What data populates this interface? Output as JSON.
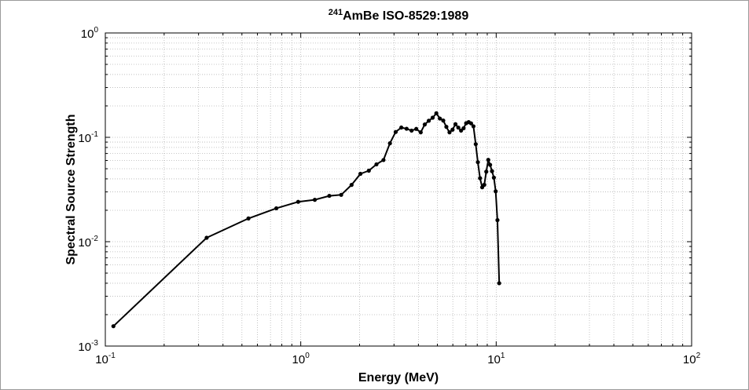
{
  "chart_data": {
    "type": "line",
    "title_superscript": "241",
    "title_main": "AmBe ISO-8529:1989",
    "xlabel": "Energy (MeV)",
    "ylabel": "Spectral Source Strength",
    "xscale": "log",
    "yscale": "log",
    "xlim": [
      0.1,
      100
    ],
    "ylim": [
      0.001,
      1
    ],
    "grid": true,
    "x_ticks": [
      {
        "base": "10",
        "exp": "-1",
        "value": 0.1
      },
      {
        "base": "10",
        "exp": "0",
        "value": 1
      },
      {
        "base": "10",
        "exp": "1",
        "value": 10
      },
      {
        "base": "10",
        "exp": "2",
        "value": 100
      }
    ],
    "y_ticks": [
      {
        "base": "10",
        "exp": "-3",
        "value": 0.001
      },
      {
        "base": "10",
        "exp": "-2",
        "value": 0.01
      },
      {
        "base": "10",
        "exp": "-1",
        "value": 0.1
      },
      {
        "base": "10",
        "exp": "0",
        "value": 1
      }
    ],
    "series": [
      {
        "color": "#000000",
        "marker": "dot",
        "x": [
          0.11,
          0.33,
          0.54,
          0.75,
          0.97,
          1.18,
          1.4,
          1.61,
          1.82,
          2.02,
          2.23,
          2.44,
          2.65,
          2.86,
          3.06,
          3.27,
          3.48,
          3.69,
          3.9,
          4.11,
          4.31,
          4.52,
          4.73,
          4.94,
          5.15,
          5.36,
          5.56,
          5.77,
          5.98,
          6.19,
          6.4,
          6.61,
          6.81,
          7.02,
          7.23,
          7.44,
          7.65,
          7.86,
          8.06,
          8.27,
          8.48,
          8.69,
          8.9,
          9.11,
          9.31,
          9.52,
          9.73,
          9.94,
          10.15,
          10.36,
          10.56,
          10.77,
          10.98
        ],
        "y": [
          0.00155,
          0.0109,
          0.0167,
          0.0209,
          0.0241,
          0.0252,
          0.0275,
          0.0281,
          0.035,
          0.0447,
          0.0479,
          0.0551,
          0.0606,
          0.0876,
          0.1125,
          0.1241,
          0.1208,
          0.116,
          0.1204,
          0.1116,
          0.1327,
          0.1441,
          0.1542,
          0.17,
          0.1514,
          0.1448,
          0.126,
          0.1116,
          0.1184,
          0.1336,
          0.124,
          0.116,
          0.1222,
          0.1366,
          0.1398,
          0.1361,
          0.1276,
          0.086,
          0.0578,
          0.0406,
          0.0332,
          0.0351,
          0.0469,
          0.0608,
          0.0545,
          0.0474,
          0.0411,
          0.0304,
          0.0161,
          0.004,
          null,
          null,
          null
        ]
      }
    ]
  }
}
